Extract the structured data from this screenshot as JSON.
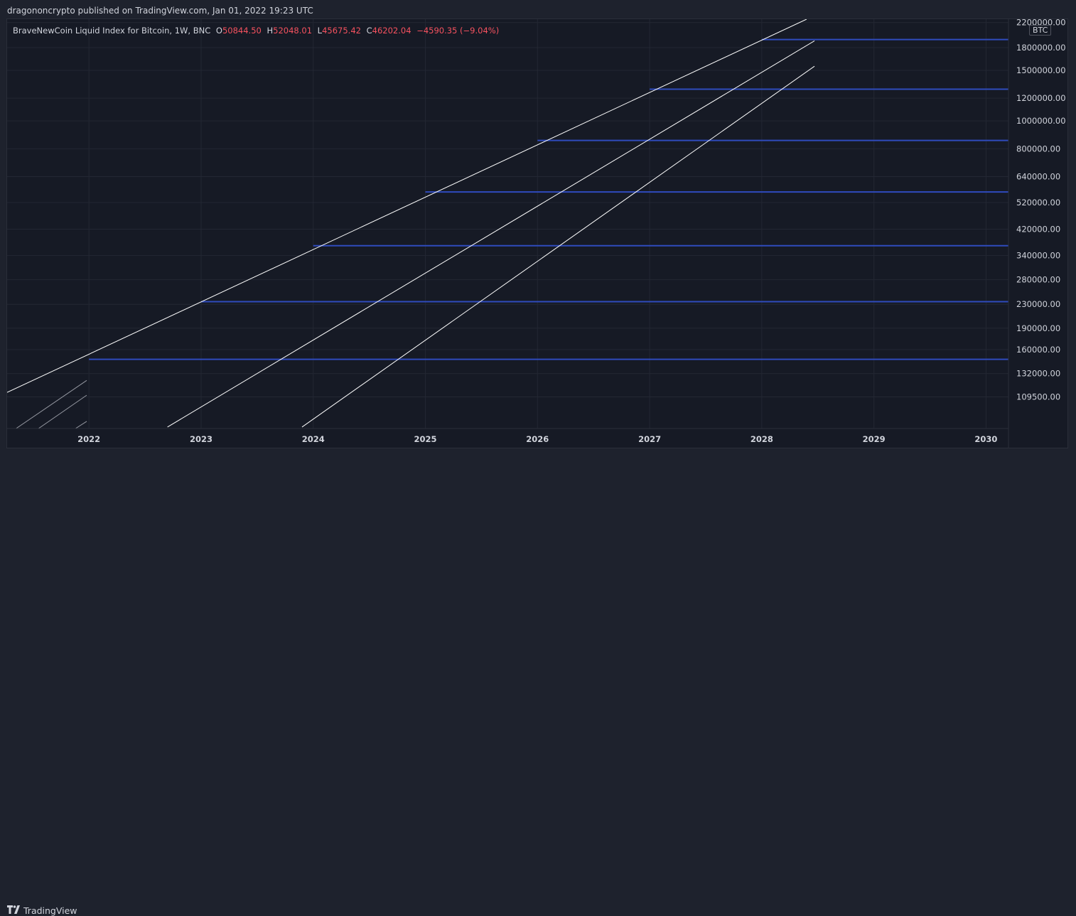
{
  "header": {
    "publisher_line": "dragononcrypto published on TradingView.com, Jan 01, 2022 19:23 UTC"
  },
  "legend": {
    "symbol": "BraveNewCoin Liquid Index for Bitcoin, 1W, BNC",
    "open_label": "O",
    "open": "50844.50",
    "high_label": "H",
    "high": "52048.01",
    "low_label": "L",
    "low": "45675.42",
    "close_label": "C",
    "close": "46202.04",
    "change": "−4590.35 (−9.04%)"
  },
  "currency_tag": "BTC",
  "footer": {
    "brand": "TradingView"
  },
  "colors": {
    "background": "#161a25",
    "grid": "#232733",
    "trend_line": "#ffffff",
    "faint_line": "#9598a1",
    "level_line": "#2f4bbd",
    "down": "#f7525f",
    "axis_text": "#d1d4dc"
  },
  "chart_data": {
    "type": "line",
    "scale": "log",
    "x_range": [
      2021.27,
      2030.2
    ],
    "y_range": [
      85000,
      2260000
    ],
    "x_ticks": [
      {
        "label": "2022",
        "x": 2022.0
      },
      {
        "label": "2023",
        "x": 2023.0
      },
      {
        "label": "2024",
        "x": 2024.0
      },
      {
        "label": "2025",
        "x": 2025.0
      },
      {
        "label": "2026",
        "x": 2026.0
      },
      {
        "label": "2027",
        "x": 2027.0
      },
      {
        "label": "2028",
        "x": 2028.0
      },
      {
        "label": "2029",
        "x": 2029.0
      },
      {
        "label": "2030",
        "x": 2030.0
      }
    ],
    "y_ticks": [
      {
        "label": "2200000.00",
        "v": 2200000
      },
      {
        "label": "1800000.00",
        "v": 1800000
      },
      {
        "label": "1500000.00",
        "v": 1500000
      },
      {
        "label": "1200000.00",
        "v": 1200000
      },
      {
        "label": "1000000.00",
        "v": 1000000
      },
      {
        "label": "800000.00",
        "v": 800000
      },
      {
        "label": "640000.00",
        "v": 640000
      },
      {
        "label": "520000.00",
        "v": 520000
      },
      {
        "label": "420000.00",
        "v": 420000
      },
      {
        "label": "340000.00",
        "v": 340000
      },
      {
        "label": "280000.00",
        "v": 280000
      },
      {
        "label": "230000.00",
        "v": 230000
      },
      {
        "label": "190000.00",
        "v": 190000
      },
      {
        "label": "160000.00",
        "v": 160000
      },
      {
        "label": "132000.00",
        "v": 132000
      },
      {
        "label": "109500.00",
        "v": 109500
      }
    ],
    "series": [
      {
        "style": "trend",
        "points": [
          [
            2021.27,
            113500
          ],
          [
            2028.4,
            2260000
          ]
        ]
      },
      {
        "style": "trend",
        "points": [
          [
            2022.7,
            86000
          ],
          [
            2028.47,
            1900000
          ]
        ]
      },
      {
        "style": "trend",
        "points": [
          [
            2023.9,
            86000
          ],
          [
            2028.47,
            1550000
          ]
        ]
      },
      {
        "style": "faint",
        "points": [
          [
            2021.35,
            85000
          ],
          [
            2021.98,
            125000
          ]
        ]
      },
      {
        "style": "faint",
        "points": [
          [
            2021.55,
            85000
          ],
          [
            2021.98,
            111000
          ]
        ]
      },
      {
        "style": "faint",
        "points": [
          [
            2021.88,
            85000
          ],
          [
            2021.98,
            90000
          ]
        ]
      }
    ],
    "levels": [
      {
        "value": 148000,
        "x_start": 2022.0
      },
      {
        "value": 235000,
        "x_start": 2023.0
      },
      {
        "value": 368000,
        "x_start": 2024.0
      },
      {
        "value": 566000,
        "x_start": 2025.0
      },
      {
        "value": 855000,
        "x_start": 2026.0
      },
      {
        "value": 1290000,
        "x_start": 2027.0
      },
      {
        "value": 1920000,
        "x_start": 2028.0
      }
    ]
  }
}
